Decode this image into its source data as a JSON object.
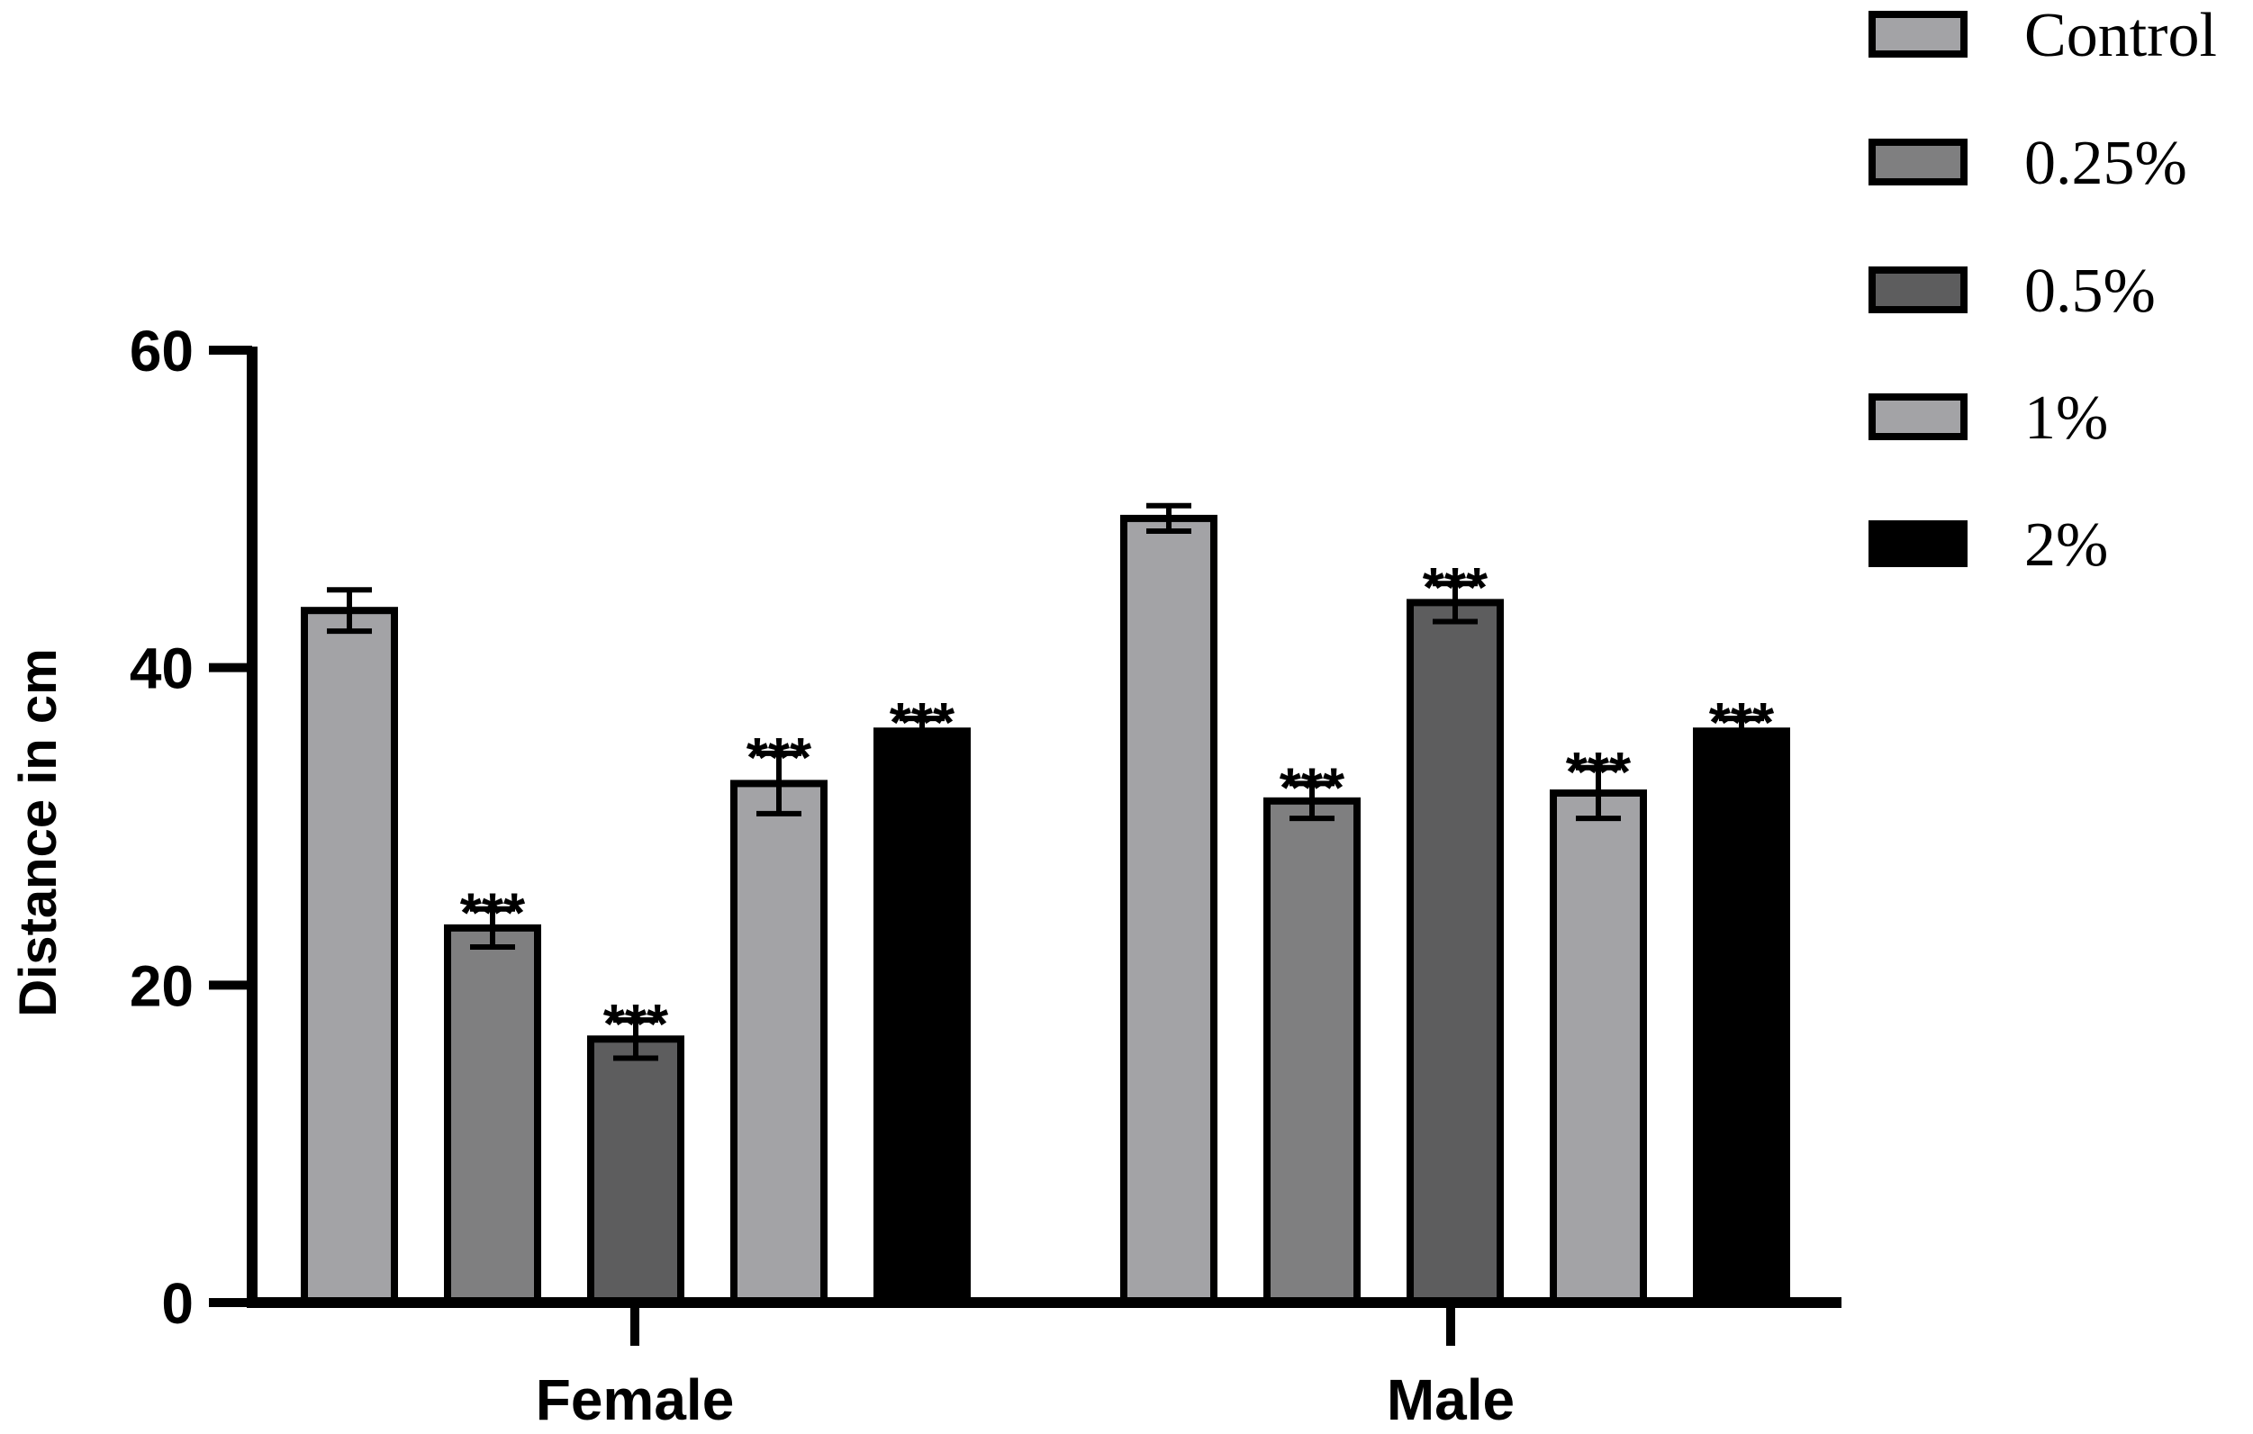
{
  "chart_data": {
    "type": "bar",
    "title": "",
    "xlabel": "",
    "ylabel": "Distance in cm",
    "ylim": [
      0,
      60
    ],
    "yticks": [
      0,
      20,
      40,
      60
    ],
    "categories": [
      "Female",
      "Male"
    ],
    "series": [
      {
        "name": "Control",
        "color": "#a3a3a6",
        "values": [
          43.6,
          49.4
        ],
        "errors": [
          1.3,
          0.8
        ],
        "significance": [
          "",
          ""
        ]
      },
      {
        "name": "0.25%",
        "color": "#7f7f80",
        "values": [
          23.6,
          31.6
        ],
        "errors": [
          1.2,
          1.1
        ],
        "significance": [
          "***",
          "***"
        ]
      },
      {
        "name": "0.5%",
        "color": "#5d5d5e",
        "values": [
          16.6,
          44.1
        ],
        "errors": [
          1.2,
          1.2
        ],
        "significance": [
          "***",
          "***"
        ]
      },
      {
        "name": "1%",
        "color": "#a3a3a6",
        "values": [
          32.7,
          32.1
        ],
        "errors": [
          1.9,
          1.6
        ],
        "significance": [
          "***",
          "***"
        ]
      },
      {
        "name": "2%",
        "color": "#000000",
        "values": [
          36.0,
          36.0
        ],
        "errors": [
          0.8,
          0.8
        ],
        "significance": [
          "***",
          "***"
        ]
      }
    ]
  }
}
